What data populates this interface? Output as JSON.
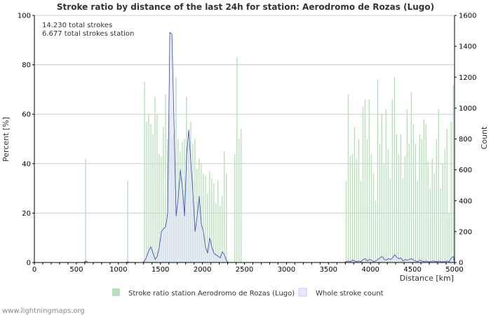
{
  "chart_data": {
    "type": "bar",
    "title": "Stroke ratio by distance of the last 24h for station: Aerodromo de Rozas (Lugo)",
    "annotations": [
      "14.230 total strokes",
      "6.677 total strokes station"
    ],
    "xlabel": "Distance   [km]",
    "ylabel": "Percent   [%]",
    "y2label": "Count",
    "xlim": [
      0,
      5000
    ],
    "ylim": [
      0,
      100
    ],
    "y2lim": [
      0,
      1600
    ],
    "x_ticks": [
      0,
      500,
      1000,
      1500,
      2000,
      2500,
      3000,
      3500,
      4000,
      4500,
      5000
    ],
    "y_ticks": [
      0,
      20,
      40,
      60,
      80,
      100
    ],
    "y2_ticks": [
      0,
      200,
      400,
      600,
      800,
      1000,
      1200,
      1400,
      1600
    ],
    "bin_width_km": 25,
    "grid": true,
    "legend_position": "bottom",
    "series": [
      {
        "name": "Stroke ratio station Aerodromo de Rozas (Lugo)",
        "type": "bar",
        "axis": "left",
        "color": "#b8e0b8",
        "points": [
          [
            612,
            42
          ],
          [
            1112,
            33
          ],
          [
            1312,
            73
          ],
          [
            1337,
            57
          ],
          [
            1362,
            60
          ],
          [
            1387,
            56
          ],
          [
            1412,
            52
          ],
          [
            1437,
            67
          ],
          [
            1462,
            60
          ],
          [
            1487,
            44
          ],
          [
            1512,
            43
          ],
          [
            1537,
            55
          ],
          [
            1562,
            68
          ],
          [
            1587,
            50
          ],
          [
            1612,
            60
          ],
          [
            1637,
            50
          ],
          [
            1662,
            52
          ],
          [
            1687,
            75
          ],
          [
            1712,
            50
          ],
          [
            1737,
            45
          ],
          [
            1762,
            49
          ],
          [
            1787,
            50
          ],
          [
            1812,
            67
          ],
          [
            1837,
            48
          ],
          [
            1862,
            57
          ],
          [
            1887,
            48
          ],
          [
            1912,
            50
          ],
          [
            1937,
            38
          ],
          [
            1962,
            42
          ],
          [
            1987,
            40
          ],
          [
            2012,
            36
          ],
          [
            2037,
            35
          ],
          [
            2062,
            28
          ],
          [
            2087,
            37
          ],
          [
            2112,
            34
          ],
          [
            2137,
            32
          ],
          [
            2162,
            24
          ],
          [
            2187,
            33
          ],
          [
            2212,
            23
          ],
          [
            2237,
            27
          ],
          [
            2262,
            45
          ],
          [
            2287,
            36
          ],
          [
            2387,
            44
          ],
          [
            2412,
            83
          ],
          [
            2437,
            50
          ],
          [
            2462,
            54
          ],
          [
            3712,
            33
          ],
          [
            3737,
            68
          ],
          [
            3762,
            43
          ],
          [
            3787,
            44
          ],
          [
            3812,
            55
          ],
          [
            3837,
            42
          ],
          [
            3862,
            50
          ],
          [
            3887,
            33
          ],
          [
            3912,
            63
          ],
          [
            3937,
            66
          ],
          [
            3962,
            50
          ],
          [
            3987,
            66
          ],
          [
            4012,
            44
          ],
          [
            4037,
            36
          ],
          [
            4062,
            25
          ],
          [
            4087,
            74
          ],
          [
            4112,
            48
          ],
          [
            4137,
            60
          ],
          [
            4162,
            40
          ],
          [
            4187,
            62
          ],
          [
            4212,
            46
          ],
          [
            4237,
            34
          ],
          [
            4262,
            66
          ],
          [
            4287,
            75
          ],
          [
            4312,
            52
          ],
          [
            4337,
            44
          ],
          [
            4362,
            52
          ],
          [
            4387,
            34
          ],
          [
            4412,
            43
          ],
          [
            4437,
            62
          ],
          [
            4462,
            48
          ],
          [
            4487,
            69
          ],
          [
            4512,
            56
          ],
          [
            4537,
            48
          ],
          [
            4562,
            33
          ],
          [
            4587,
            52
          ],
          [
            4612,
            50
          ],
          [
            4637,
            58
          ],
          [
            4662,
            56
          ],
          [
            4687,
            41
          ],
          [
            4712,
            30
          ],
          [
            4737,
            42
          ],
          [
            4762,
            36
          ],
          [
            4787,
            50
          ],
          [
            4812,
            62
          ],
          [
            4837,
            30
          ],
          [
            4862,
            40
          ],
          [
            4887,
            46
          ],
          [
            4912,
            54
          ],
          [
            4937,
            20
          ],
          [
            4962,
            57
          ],
          [
            4987,
            72
          ]
        ]
      },
      {
        "name": "Whole stroke count",
        "type": "line",
        "axis": "right",
        "color": "#3344bb",
        "fill": "#e0e0f8",
        "points": [
          [
            0,
            0
          ],
          [
            587,
            0
          ],
          [
            612,
            10
          ],
          [
            637,
            0
          ],
          [
            1087,
            0
          ],
          [
            1112,
            4
          ],
          [
            1137,
            0
          ],
          [
            1287,
            0
          ],
          [
            1312,
            10
          ],
          [
            1337,
            40
          ],
          [
            1362,
            80
          ],
          [
            1387,
            100
          ],
          [
            1412,
            60
          ],
          [
            1437,
            20
          ],
          [
            1462,
            40
          ],
          [
            1487,
            100
          ],
          [
            1512,
            200
          ],
          [
            1537,
            220
          ],
          [
            1562,
            230
          ],
          [
            1587,
            320
          ],
          [
            1612,
            1490
          ],
          [
            1637,
            1480
          ],
          [
            1662,
            900
          ],
          [
            1687,
            300
          ],
          [
            1712,
            420
          ],
          [
            1737,
            600
          ],
          [
            1762,
            480
          ],
          [
            1787,
            300
          ],
          [
            1812,
            700
          ],
          [
            1837,
            860
          ],
          [
            1862,
            650
          ],
          [
            1887,
            450
          ],
          [
            1912,
            200
          ],
          [
            1937,
            300
          ],
          [
            1962,
            430
          ],
          [
            1987,
            250
          ],
          [
            2012,
            200
          ],
          [
            2037,
            100
          ],
          [
            2062,
            60
          ],
          [
            2087,
            160
          ],
          [
            2112,
            100
          ],
          [
            2137,
            60
          ],
          [
            2162,
            50
          ],
          [
            2187,
            40
          ],
          [
            2212,
            30
          ],
          [
            2237,
            70
          ],
          [
            2262,
            50
          ],
          [
            2287,
            10
          ],
          [
            2312,
            0
          ],
          [
            3687,
            0
          ],
          [
            3712,
            5
          ],
          [
            3737,
            10
          ],
          [
            3762,
            5
          ],
          [
            3787,
            15
          ],
          [
            3812,
            10
          ],
          [
            3837,
            5
          ],
          [
            3862,
            10
          ],
          [
            3887,
            5
          ],
          [
            3912,
            20
          ],
          [
            3937,
            25
          ],
          [
            3962,
            10
          ],
          [
            3987,
            20
          ],
          [
            4012,
            15
          ],
          [
            4037,
            5
          ],
          [
            4062,
            10
          ],
          [
            4087,
            20
          ],
          [
            4112,
            30
          ],
          [
            4137,
            40
          ],
          [
            4162,
            20
          ],
          [
            4187,
            15
          ],
          [
            4212,
            25
          ],
          [
            4237,
            20
          ],
          [
            4262,
            30
          ],
          [
            4287,
            50
          ],
          [
            4312,
            35
          ],
          [
            4337,
            25
          ],
          [
            4362,
            30
          ],
          [
            4387,
            10
          ],
          [
            4412,
            20
          ],
          [
            4437,
            15
          ],
          [
            4462,
            20
          ],
          [
            4487,
            25
          ],
          [
            4512,
            15
          ],
          [
            4537,
            10
          ],
          [
            4562,
            5
          ],
          [
            4587,
            15
          ],
          [
            4612,
            10
          ],
          [
            4637,
            5
          ],
          [
            4662,
            10
          ],
          [
            4687,
            5
          ],
          [
            4712,
            5
          ],
          [
            4737,
            10
          ],
          [
            4762,
            8
          ],
          [
            4787,
            5
          ],
          [
            4812,
            10
          ],
          [
            4837,
            5
          ],
          [
            4862,
            5
          ],
          [
            4887,
            5
          ],
          [
            4912,
            10
          ],
          [
            4937,
            5
          ],
          [
            4962,
            30
          ],
          [
            4987,
            40
          ],
          [
            5000,
            0
          ]
        ]
      }
    ]
  },
  "footer": {
    "credit": "www.lightningmaps.org"
  },
  "colors": {
    "grid": "#cccccc",
    "axis": "#000000",
    "text": "#333333"
  }
}
